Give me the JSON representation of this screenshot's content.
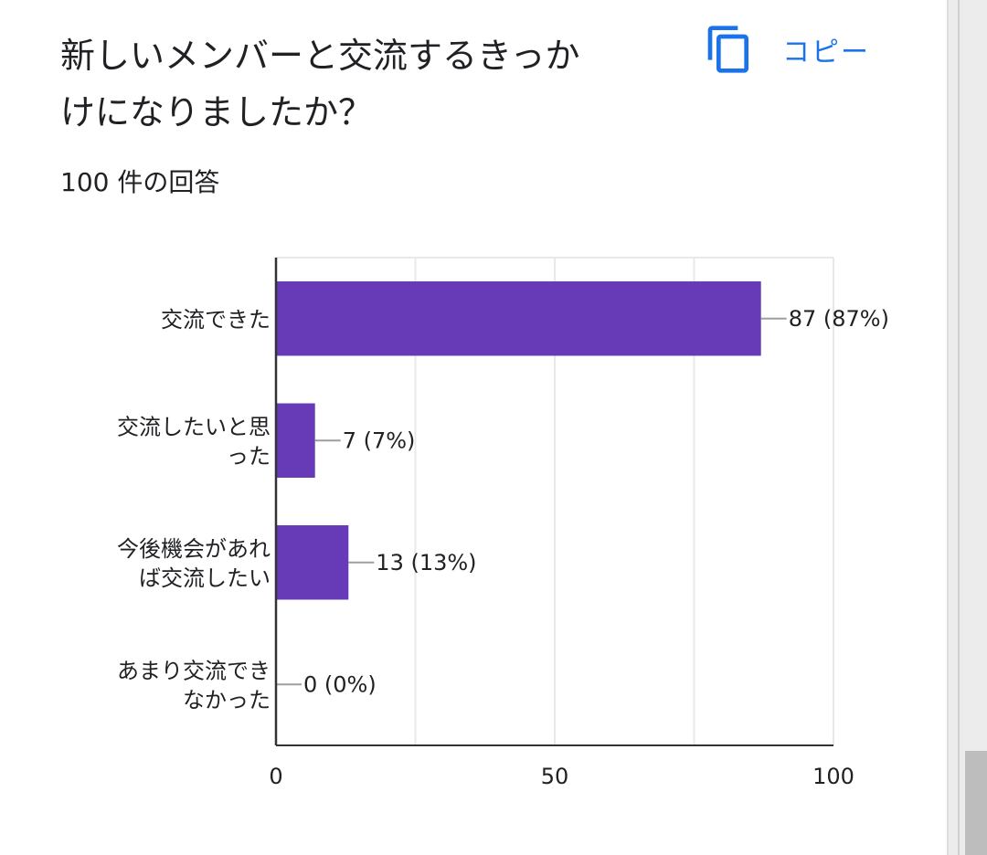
{
  "question": {
    "title_lines": [
      "新しいメンバーと交流するきっか",
      "けになりましたか？"
    ],
    "copy_label": "コピー",
    "response_count": "100 件の回答"
  },
  "colors": {
    "bar": "#673ab7",
    "accent": "#1a73e8",
    "grid": "#e8e8e8",
    "axis": "#333333",
    "leader": "#9e9e9e"
  },
  "icons": {
    "copy": "copy-icon"
  },
  "chart_data": {
    "type": "bar",
    "orientation": "horizontal",
    "categories": [
      [
        "交流できた"
      ],
      [
        "交流したいと思",
        "った"
      ],
      [
        "今後機会があれ",
        "ば交流したい"
      ],
      [
        "あまり交流でき",
        "なかった"
      ]
    ],
    "values": [
      87,
      7,
      13,
      0
    ],
    "data_labels": [
      "87 (87%)",
      "7 (7%)",
      "13 (13%)",
      "0 (0%)"
    ],
    "xlim": [
      0,
      100
    ],
    "x_ticks": [
      0,
      50,
      100
    ],
    "x_tick_labels": [
      "0",
      "50",
      "100"
    ],
    "grid": true,
    "xlabel": "",
    "ylabel": ""
  }
}
